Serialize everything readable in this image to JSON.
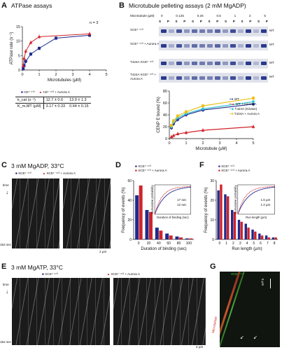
{
  "panels": {
    "A": {
      "letter": "A",
      "title": "ATPase assays",
      "n_label": "n = 3",
      "legend": [
        "CE¹⁻⁴⁷³",
        "CE¹⁻⁴⁷³ + Aurora A"
      ],
      "table": {
        "rows": [
          {
            "label": "k_cat (s⁻¹)",
            "v1": "12.7 ± 0.6",
            "v2": "13.9 ± 1.3"
          },
          {
            "label": "K_m,MT (µM)",
            "v1": "3.17 ± 0.33",
            "v2": "0.64 ± 0.15"
          }
        ]
      }
    },
    "B": {
      "letter": "B",
      "title": "Microtubule pelleting assays (2 mM MgADP)",
      "conc_header": "Microtubule (µM)",
      "concs": [
        "0",
        "0.125",
        "0.25",
        "0.5",
        "1",
        "2",
        "5"
      ],
      "sp": [
        "S",
        "P"
      ],
      "rows": [
        {
          "label": "XCE¹⁻⁴⁷³",
          "side": "MT"
        },
        {
          "label": "XCE¹⁻⁴⁷³ + Aurora A",
          "side": "MT"
        },
        {
          "label": "T424A XCE¹⁻⁴⁷³",
          "side": "MT"
        },
        {
          "label": "T424A XCE¹⁻⁴⁷³ + Aurora A",
          "side": "MT"
        }
      ],
      "legend": [
        "WT",
        "WT + Aurora A",
        "T424A (Kinase)",
        "T424A + Aurora A"
      ]
    },
    "C": {
      "letter": "C",
      "title": "3 mM MgADP, 33°C",
      "legend": [
        "XCE¹⁻⁴⁷³",
        "XCE¹⁻⁴⁷³ + Aurora A"
      ],
      "time_label": "time",
      "time_scale": "152 sec",
      "scale": "2 µm"
    },
    "D": {
      "letter": "D",
      "legend": [
        "XCE¹⁻⁴⁷³",
        "XCE¹⁻⁴⁷³ + Aurora A"
      ],
      "inset_legend": [
        "17 sec",
        "12 sec"
      ],
      "inset_xlabel": "Duration of binding (sec)",
      "inset_ylabel": "Cumulative probability"
    },
    "E": {
      "letter": "E",
      "title": "3 mM MgATP, 33°C",
      "legend": [
        "XCE¹⁻⁴⁷³",
        "XCE¹⁻⁴⁷³ + Aurora A"
      ],
      "time_label": "time",
      "time_scale": "152 sec",
      "scale": "2 µm"
    },
    "F": {
      "letter": "F",
      "legend": [
        "XCE¹⁻⁴⁷³",
        "XCE¹⁻⁴⁷³ + Aurora A"
      ],
      "inset_legend": [
        "1.6 µm",
        "1.2 µm"
      ],
      "inset_xlabel": "Run length (µm)",
      "inset_ylabel": "Cumulative probability"
    },
    "G": {
      "letter": "G",
      "green_label": "XCE¹⁻⁴⁷³",
      "red_label": "Microtubule",
      "scale": "5 µm"
    }
  },
  "colors": {
    "blue": "#1f2a8c",
    "red": "#d0232a",
    "cyan": "#2ec4d6",
    "yellow": "#e8c21a",
    "gray": "#9a9a9a"
  },
  "chart_data": [
    {
      "type": "line",
      "panel": "A",
      "xlabel": "Microtubules (µM)",
      "ylabel": "ATPase rate (s⁻¹)",
      "xlim": [
        0,
        5
      ],
      "ylim": [
        0,
        15
      ],
      "xticks": [
        0,
        1,
        2,
        3,
        4,
        5
      ],
      "yticks": [
        0,
        5,
        10,
        15
      ],
      "series": [
        {
          "name": "CE¹⁻⁴⁷³",
          "color": "#1f2a8c",
          "x": [
            0.05,
            0.1,
            0.2,
            0.5,
            1,
            2,
            4
          ],
          "y": [
            0.5,
            1.5,
            3.0,
            5.5,
            7.5,
            11.0,
            12.0
          ]
        },
        {
          "name": "CE¹⁻⁴⁷³ + Aurora A",
          "color": "#d0232a",
          "x": [
            0.05,
            0.1,
            0.2,
            0.5,
            1,
            4
          ],
          "y": [
            1.5,
            4.0,
            6.5,
            9.5,
            11.5,
            12.5
          ]
        }
      ]
    },
    {
      "type": "line",
      "panel": "B",
      "xlabel": "Microtubule (µM)",
      "ylabel": "CENP E bound (%)",
      "xlim": [
        0,
        5
      ],
      "ylim": [
        0,
        80
      ],
      "xticks": [
        0,
        1,
        2,
        3,
        4,
        5
      ],
      "yticks": [
        0,
        20,
        40,
        60,
        80
      ],
      "series": [
        {
          "name": "WT",
          "color": "#1f2a8c",
          "x": [
            0.125,
            0.25,
            0.5,
            1,
            2,
            5
          ],
          "y": [
            18,
            25,
            32,
            40,
            48,
            58
          ]
        },
        {
          "name": "WT + Aurora A",
          "color": "#d0232a",
          "x": [
            0.125,
            0.25,
            0.5,
            1,
            2,
            5
          ],
          "y": [
            3,
            5,
            8,
            10,
            14,
            20
          ]
        },
        {
          "name": "T424A (Kinase)",
          "color": "#2ec4d6",
          "x": [
            0.125,
            0.25,
            0.5,
            1,
            2,
            5
          ],
          "y": [
            20,
            28,
            35,
            42,
            50,
            62
          ]
        },
        {
          "name": "T424A + Aurora A",
          "color": "#e8c21a",
          "x": [
            0.125,
            0.25,
            0.5,
            1,
            2,
            5
          ],
          "y": [
            22,
            30,
            38,
            45,
            55,
            68
          ]
        }
      ]
    },
    {
      "type": "bar",
      "panel": "D",
      "xlabel": "Duration of binding (sec)",
      "ylabel": "Frequency of events (%)",
      "categories": [
        "0",
        "20",
        "40",
        "60",
        "80",
        "100"
      ],
      "ylim": [
        0,
        60
      ],
      "yticks": [
        0,
        20,
        40,
        60
      ],
      "series": [
        {
          "name": "XCE¹⁻⁴⁷³",
          "color": "#1f2a8c",
          "values": [
            45,
            30,
            12,
            6,
            3,
            1
          ]
        },
        {
          "name": "XCE¹⁻⁴⁷³ + Aurora A",
          "color": "#d0232a",
          "values": [
            55,
            28,
            9,
            4,
            2,
            1
          ]
        }
      ]
    },
    {
      "type": "bar",
      "panel": "F",
      "xlabel": "Run length (µm)",
      "ylabel": "Frequency of events (%)",
      "categories": [
        "0",
        "1",
        "2",
        "3",
        "4",
        "5",
        "6",
        "7",
        "8"
      ],
      "ylim": [
        0,
        30
      ],
      "yticks": [
        0,
        10,
        20,
        30
      ],
      "series": [
        {
          "name": "XCE¹⁻⁴⁷³",
          "color": "#1f2a8c",
          "values": [
            25,
            23,
            15,
            10,
            8,
            5,
            3,
            2,
            1
          ]
        },
        {
          "name": "XCE¹⁻⁴⁷³ + Aurora A",
          "color": "#d0232a",
          "values": [
            28,
            22,
            14,
            9,
            6,
            4,
            2,
            1,
            1
          ]
        }
      ]
    }
  ]
}
